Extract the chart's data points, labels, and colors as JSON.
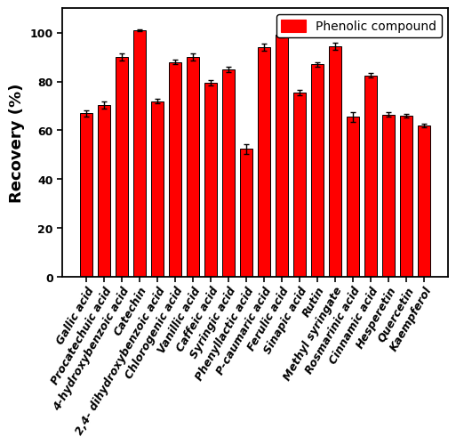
{
  "categories": [
    "Gallic acid",
    "Procatechuic acid",
    "4-hydroxybenzoic acid",
    "Catechin",
    "2,4- dihydroxybenzoic acid",
    "Chlorogenic acid",
    "Vanillic acid",
    "Caffeic acid",
    "Syringic acid",
    "Phenyllactic acid",
    "P-caumaric acid",
    "Ferulic acid",
    "Sinapic acid",
    "Rutin",
    "Methyl syringate",
    "Rosmarinic acid",
    "Cinnamic acid",
    "Hesperetin",
    "Quercetin",
    "Kaempferol"
  ],
  "values": [
    67,
    70.5,
    90,
    101,
    72,
    88,
    90,
    79.5,
    85,
    52.5,
    94,
    99,
    75.5,
    87,
    94.5,
    65.5,
    82.5,
    66.5,
    66,
    62
  ],
  "errors": [
    1.2,
    1.5,
    1.5,
    0.5,
    1.0,
    1.0,
    1.5,
    1.0,
    1.2,
    2.0,
    1.5,
    0.8,
    1.0,
    1.0,
    1.5,
    2.0,
    1.0,
    0.8,
    0.8,
    0.8
  ],
  "bar_color": "#FF0000",
  "bar_edgecolor": "#000000",
  "ylabel": "Recovery (%)",
  "ylim": [
    0,
    110
  ],
  "yticks": [
    0,
    20,
    40,
    60,
    80,
    100
  ],
  "legend_label": "Phenolic compound",
  "background_color": "#ffffff",
  "label_fontsize": 13,
  "tick_fontsize": 9,
  "bar_width": 0.72
}
